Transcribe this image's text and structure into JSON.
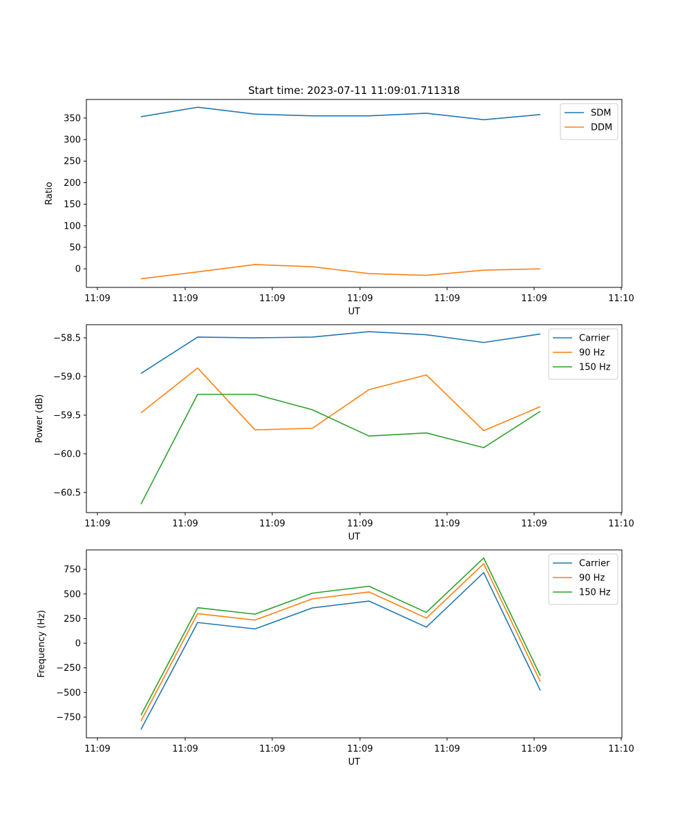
{
  "chart_data": [
    {
      "type": "line",
      "title": "Start time: 2023-07-11 11:09:01.711318",
      "xlabel": "UT",
      "ylabel": "Ratio",
      "xticks": [
        "11:09",
        "11:09",
        "11:09",
        "11:09",
        "11:09",
        "11:09",
        "11:10"
      ],
      "yticks": [
        0,
        50,
        100,
        150,
        200,
        250,
        300,
        350
      ],
      "ylim": [
        -43,
        393
      ],
      "legend_position": "top-right",
      "series": [
        {
          "name": "SDM",
          "color": "#1f77b4",
          "values": [
            353,
            375,
            359,
            355,
            355,
            361,
            346,
            358
          ]
        },
        {
          "name": "DDM",
          "color": "#ff7f0e",
          "values": [
            -23,
            -7,
            10,
            5,
            -11,
            -15,
            -3,
            0
          ]
        }
      ]
    },
    {
      "type": "line",
      "title": "",
      "xlabel": "UT",
      "ylabel": "Power (dB)",
      "xticks": [
        "11:09",
        "11:09",
        "11:09",
        "11:09",
        "11:09",
        "11:09",
        "11:10"
      ],
      "yticks": [
        -58.5,
        -59.0,
        -59.5,
        -60.0,
        -60.5
      ],
      "ytick_labels": [
        "−58.5",
        "−59.0",
        "−59.5",
        "−60.0",
        "−60.5"
      ],
      "ylim": [
        -60.76,
        -58.33
      ],
      "legend_position": "top-right",
      "series": [
        {
          "name": "Carrier",
          "color": "#1f77b4",
          "values": [
            -58.96,
            -58.49,
            -58.5,
            -58.49,
            -58.42,
            -58.46,
            -58.56,
            -58.45
          ]
        },
        {
          "name": "90 Hz",
          "color": "#ff7f0e",
          "values": [
            -59.47,
            -58.89,
            -59.69,
            -59.67,
            -59.17,
            -58.98,
            -59.7,
            -59.39
          ]
        },
        {
          "name": "150 Hz",
          "color": "#2ca02c",
          "values": [
            -60.65,
            -59.23,
            -59.23,
            -59.43,
            -59.77,
            -59.73,
            -59.92,
            -59.45
          ]
        }
      ]
    },
    {
      "type": "line",
      "title": "",
      "xlabel": "UT",
      "ylabel": "Frequency (Hz)",
      "xticks": [
        "11:09",
        "11:09",
        "11:09",
        "11:09",
        "11:09",
        "11:09",
        "11:10"
      ],
      "yticks": [
        -750,
        -500,
        -250,
        0,
        250,
        500,
        750
      ],
      "ytick_labels": [
        "−750",
        "−500",
        "−250",
        "0",
        "250",
        "500",
        "750"
      ],
      "ylim": [
        -960,
        947
      ],
      "legend_position": "top-right",
      "series": [
        {
          "name": "Carrier",
          "color": "#1f77b4",
          "values": [
            -875,
            210,
            145,
            358,
            428,
            163,
            717,
            -480
          ]
        },
        {
          "name": "90 Hz",
          "color": "#ff7f0e",
          "values": [
            -790,
            300,
            235,
            450,
            520,
            255,
            807,
            -390
          ]
        },
        {
          "name": "150 Hz",
          "color": "#2ca02c",
          "values": [
            -730,
            360,
            295,
            508,
            578,
            313,
            865,
            -330
          ]
        }
      ]
    }
  ]
}
